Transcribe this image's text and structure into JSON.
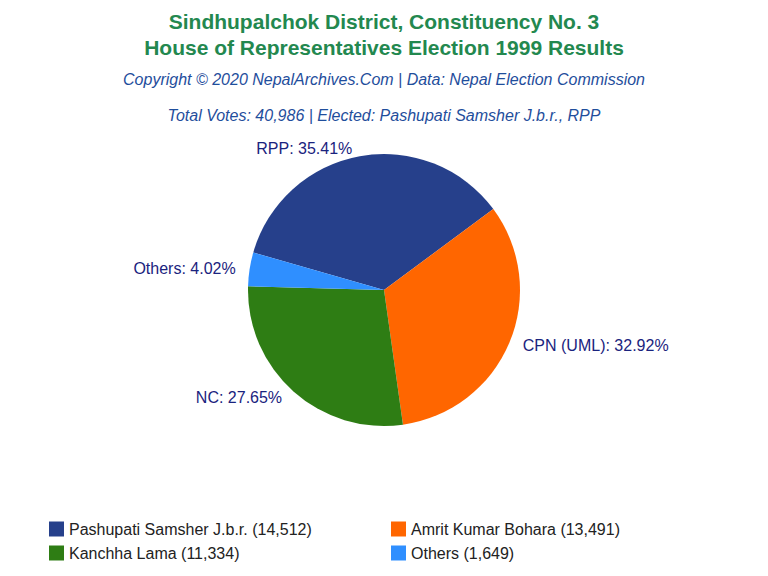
{
  "chart_data": {
    "type": "pie",
    "title": [
      "Sindhupalchok District, Constituency No. 3",
      "House of Representatives Election 1999 Results"
    ],
    "subtitle": [
      "Copyright © 2020 NepalArchives.Com | Data: Nepal Election Commission",
      "Total Votes: 40,986 | Elected: Pashupati Samsher J.b.r., RPP"
    ],
    "legend_labels": [
      "Pashupati Samsher J.b.r. (14,512)",
      "Amrit Kumar Bohara (13,491)",
      "Kanchha Lama (11,334)",
      "Others (1,649)"
    ],
    "values": [
      35.41,
      32.92,
      27.65,
      4.02
    ],
    "value_labels": [
      "RPP: 35.41%",
      "CPN (UML): 32.92%",
      "NC: 27.65%",
      "Others: 4.02%"
    ],
    "colors": [
      "#26408b",
      "#ff6600",
      "#2e7d14",
      "#2f8fff"
    ],
    "data_labels": true,
    "legend": "bottom"
  }
}
